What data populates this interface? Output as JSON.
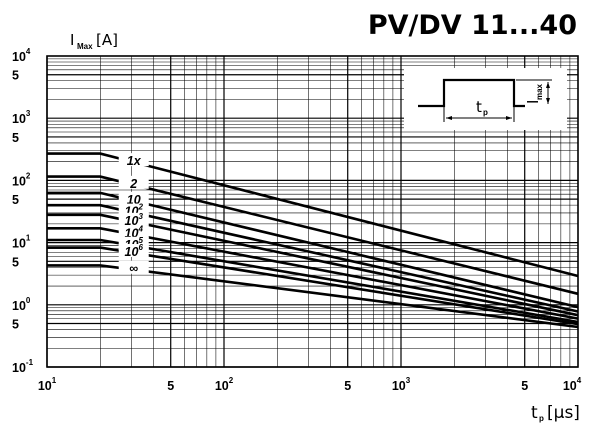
{
  "header": {
    "title": "PV/DV 11...40",
    "y_label_main": "I",
    "y_label_sub": "Max",
    "y_label_unit": "[A]",
    "x_label_main": "t",
    "x_label_sub": "p",
    "x_label_unit": "[µs]"
  },
  "inset": {
    "pulse_width_label": "t",
    "pulse_width_sub": "p",
    "amplitude_label": "I",
    "amplitude_sub": "max"
  },
  "chart_data": {
    "type": "line",
    "title": "PV/DV 11...40",
    "xlabel": "tp [µs]",
    "ylabel": "IMax [A]",
    "xscale": "log",
    "yscale": "log",
    "xlim": [
      10,
      10000
    ],
    "ylim": [
      0.1,
      10000
    ],
    "grid": true,
    "x_ticks": [
      {
        "value": 10,
        "base": "10",
        "exp": "1"
      },
      {
        "value": 50,
        "base": "5",
        "exp": ""
      },
      {
        "value": 100,
        "base": "10",
        "exp": "2"
      },
      {
        "value": 500,
        "base": "5",
        "exp": ""
      },
      {
        "value": 1000,
        "base": "10",
        "exp": "3"
      },
      {
        "value": 5000,
        "base": "5",
        "exp": ""
      },
      {
        "value": 10000,
        "base": "10",
        "exp": "4"
      }
    ],
    "y_ticks": [
      {
        "value": 10000,
        "base": "10",
        "exp": "4"
      },
      {
        "value": 5000,
        "base": "5",
        "exp": ""
      },
      {
        "value": 1000,
        "base": "10",
        "exp": "3"
      },
      {
        "value": 500,
        "base": "5",
        "exp": ""
      },
      {
        "value": 100,
        "base": "10",
        "exp": "2"
      },
      {
        "value": 50,
        "base": "5",
        "exp": ""
      },
      {
        "value": 10,
        "base": "10",
        "exp": "1"
      },
      {
        "value": 5,
        "base": "5",
        "exp": ""
      },
      {
        "value": 1,
        "base": "10",
        "exp": "0"
      },
      {
        "value": 0.5,
        "base": "5",
        "exp": ""
      },
      {
        "value": 0.1,
        "base": "10",
        "exp": "-1"
      }
    ],
    "series": [
      {
        "name": "1x",
        "label_base": "1x",
        "label_exp": "",
        "values": [
          [
            10,
            270
          ],
          [
            20,
            270
          ],
          [
            10000,
            2.9
          ]
        ]
      },
      {
        "name": "2",
        "label_base": "2",
        "label_exp": "",
        "values": [
          [
            10,
            115
          ],
          [
            20,
            115
          ],
          [
            10000,
            1.5
          ]
        ]
      },
      {
        "name": "10",
        "label_base": "10",
        "label_exp": "",
        "values": [
          [
            10,
            63
          ],
          [
            20,
            63
          ],
          [
            10000,
            0.92
          ]
        ]
      },
      {
        "name": "10^2",
        "label_base": "10",
        "label_exp": "2",
        "values": [
          [
            10,
            40
          ],
          [
            20,
            40
          ],
          [
            10000,
            0.78
          ]
        ]
      },
      {
        "name": "10^3",
        "label_base": "10",
        "label_exp": "3",
        "values": [
          [
            10,
            28
          ],
          [
            20,
            28
          ],
          [
            10000,
            0.68
          ]
        ]
      },
      {
        "name": "10^4",
        "label_base": "10",
        "label_exp": "4",
        "values": [
          [
            10,
            17
          ],
          [
            20,
            17
          ],
          [
            10000,
            0.6
          ]
        ]
      },
      {
        "name": "10^5",
        "label_base": "10",
        "label_exp": "5",
        "values": [
          [
            10,
            11
          ],
          [
            20,
            11
          ],
          [
            10000,
            0.53
          ]
        ]
      },
      {
        "name": "10^6",
        "label_base": "10",
        "label_exp": "6",
        "values": [
          [
            10,
            8.3
          ],
          [
            20,
            8.3
          ],
          [
            10000,
            0.49
          ]
        ]
      },
      {
        "name": "∞",
        "label_base": "∞",
        "label_exp": "",
        "values": [
          [
            10,
            4.3
          ],
          [
            20,
            4.3
          ],
          [
            10000,
            0.44
          ]
        ]
      }
    ]
  }
}
